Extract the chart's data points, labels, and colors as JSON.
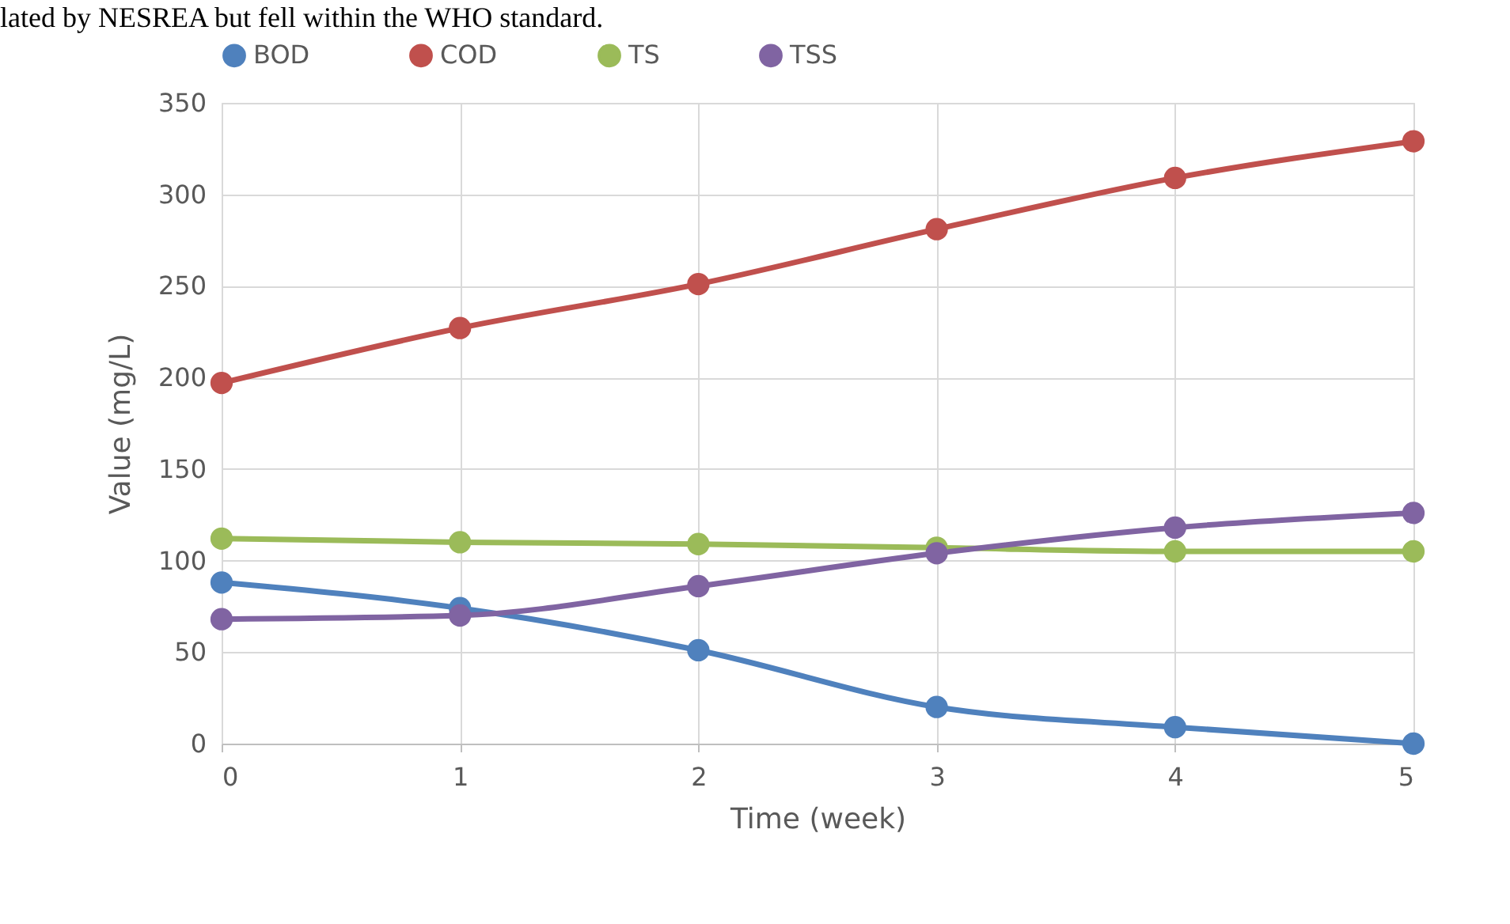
{
  "chart_data": {
    "type": "line",
    "xlabel": "Time (week)",
    "ylabel": "Value (mg/L)",
    "annotations": [
      "lated by NESREA but fell within the WHO standard."
    ],
    "x": [
      0,
      1,
      2,
      3,
      4,
      5
    ],
    "xlim": [
      0,
      5
    ],
    "xticks": [
      0,
      1,
      2,
      3,
      4,
      5
    ],
    "ylim": [
      0,
      350
    ],
    "yticks": [
      0,
      50,
      100,
      150,
      200,
      250,
      300,
      350
    ],
    "grid": true,
    "legend": "top",
    "marker": "circle",
    "line_style": "solid",
    "series": [
      {
        "name": "BOD",
        "color": "#4f81bd",
        "values": [
          88,
          74,
          51,
          20,
          9,
          0
        ]
      },
      {
        "name": "COD",
        "color": "#c0504d",
        "values": [
          197,
          227,
          251,
          281,
          309,
          329
        ]
      },
      {
        "name": "TS",
        "color": "#9bbb59",
        "values": [
          112,
          110,
          109,
          107,
          105,
          105
        ]
      },
      {
        "name": "TSS",
        "color": "#8064a2",
        "values": [
          68,
          70,
          86,
          104,
          118,
          126
        ]
      }
    ]
  }
}
